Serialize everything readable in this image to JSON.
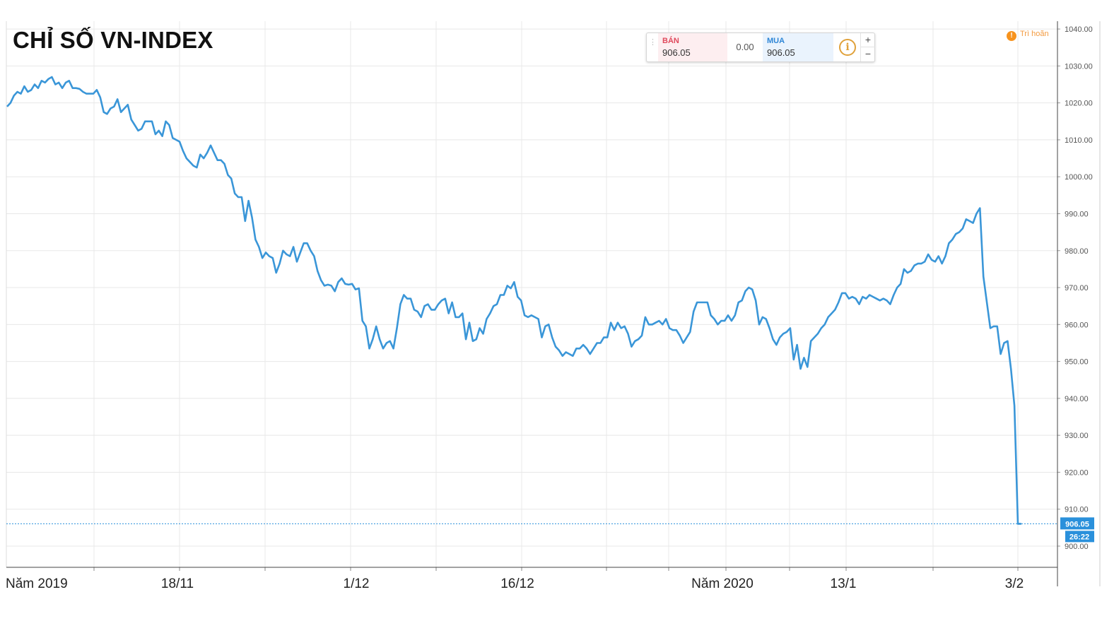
{
  "title": "CHỈ SỐ VN-INDEX",
  "widget": {
    "sell_label": "BÁN",
    "sell_value": "906.05",
    "spread": "0.00",
    "buy_label": "MUA",
    "buy_value": "906.05",
    "info_icon": "info-icon",
    "zoom_in": "+",
    "zoom_out": "−",
    "sell_color": "#e04a5d",
    "buy_color": "#2e86d6"
  },
  "delay_label": "Trì hoãn",
  "last_price_label": "906.05",
  "countdown_label": "26:22",
  "colors": {
    "line": "#3a96d8",
    "grid": "#e8e8e8",
    "axis": "#555555",
    "badge": "#2a90db"
  },
  "chart_data": {
    "type": "line",
    "title": "CHỈ SỐ VN-INDEX",
    "xlabel": "",
    "ylabel": "",
    "ylim": [
      896,
      1041
    ],
    "y_ticks": [
      900,
      910,
      920,
      930,
      940,
      950,
      960,
      970,
      980,
      990,
      1000,
      1010,
      1020,
      1030,
      1040
    ],
    "y_tick_labels": [
      "900.00",
      "910.00",
      "920.00",
      "930.00",
      "940.00",
      "950.00",
      "960.00",
      "970.00",
      "980.00",
      "990.00",
      "1000.00",
      "1010.00",
      "1020.00",
      "1030.00",
      "1040.00"
    ],
    "x_tick_labels": [
      "Năm 2019",
      "18/11",
      "1/12",
      "16/12",
      "Năm 2020",
      "13/1",
      "3/2"
    ],
    "x_tick_index": [
      0,
      39,
      80,
      118,
      168,
      196,
      236
    ],
    "grid": true,
    "legend": "none",
    "last_value": 906.05,
    "values": [
      1019,
      1020,
      1022,
      1023,
      1022.5,
      1024.5,
      1023,
      1023.5,
      1025,
      1024,
      1026,
      1025.5,
      1026.5,
      1027,
      1025,
      1025.5,
      1024,
      1025.5,
      1026,
      1024,
      1024,
      1023.8,
      1023,
      1022.5,
      1022.5,
      1022.5,
      1023.5,
      1021.5,
      1017.5,
      1017,
      1018.5,
      1019,
      1021,
      1017.5,
      1018.5,
      1019.5,
      1015.5,
      1014,
      1012.5,
      1013,
      1015,
      1015,
      1015,
      1011.5,
      1012.5,
      1011,
      1015,
      1014,
      1010.5,
      1010,
      1009.5,
      1007,
      1005,
      1004,
      1003,
      1002.5,
      1006,
      1005,
      1006.5,
      1008.5,
      1006.5,
      1004.5,
      1004.5,
      1003.5,
      1000.5,
      999.5,
      995.5,
      994.5,
      994.5,
      988,
      993.5,
      989,
      983,
      981,
      978,
      979.5,
      978.5,
      978,
      974,
      976.5,
      980,
      979,
      978.5,
      981,
      977,
      979.5,
      982,
      982,
      980,
      978.5,
      974.5,
      972,
      970.5,
      970.8,
      970.5,
      969,
      971.5,
      972.5,
      971,
      970.8,
      971,
      969.5,
      969.8,
      961,
      959.5,
      953.5,
      956,
      959.5,
      956,
      953.5,
      955,
      955.5,
      953.5,
      959,
      965.5,
      968,
      967,
      967,
      964,
      963.5,
      962,
      965,
      965.5,
      964,
      964,
      965.5,
      966.5,
      967,
      963,
      966,
      962,
      962,
      963,
      956,
      960.5,
      955.5,
      956,
      959,
      957.5,
      961.5,
      963,
      965,
      965.5,
      968,
      968,
      970.5,
      969.8,
      971.5,
      967.5,
      966.5,
      962.5,
      962,
      962.5,
      962,
      961.5,
      956.5,
      959.5,
      960,
      956.5,
      954,
      953,
      951.5,
      952.5,
      952,
      951.5,
      953.5,
      953.5,
      954.5,
      953.5,
      952,
      953.5,
      955,
      955,
      956.5,
      956.5,
      960.5,
      958.5,
      960.5,
      959,
      959.5,
      957.5,
      954,
      955.5,
      956,
      957,
      962,
      960,
      960,
      960.5,
      961,
      960,
      961.5,
      959,
      958.5,
      958.5,
      957,
      955,
      956.5,
      958,
      963.5,
      966,
      966,
      966,
      966,
      962.5,
      961.5,
      960,
      961,
      961,
      962.5,
      961,
      962.5,
      966,
      966.5,
      969,
      970,
      969.5,
      966.5,
      960,
      962,
      961.5,
      959,
      956,
      954.5,
      956.5,
      957.5,
      958,
      959,
      950.5,
      954.5,
      948,
      951,
      948.5,
      955.5,
      956.5,
      957.5,
      959,
      960,
      962,
      963,
      964,
      966,
      968.5,
      968.5,
      967,
      967.5,
      967,
      965.5,
      967.5,
      967,
      968,
      967.5,
      967,
      966.5,
      967,
      966.5,
      965.5,
      968,
      970,
      971,
      975,
      974,
      974.5,
      976,
      976.5,
      976.5,
      977,
      979,
      977.5,
      977,
      978.5,
      976.5,
      978.5,
      982,
      983,
      984.5,
      985,
      986,
      988.5,
      988,
      987.5,
      990,
      991.5,
      973,
      966,
      959,
      959.5,
      959.5,
      952,
      955,
      955.5,
      948,
      938,
      906.05,
      906.05
    ]
  }
}
